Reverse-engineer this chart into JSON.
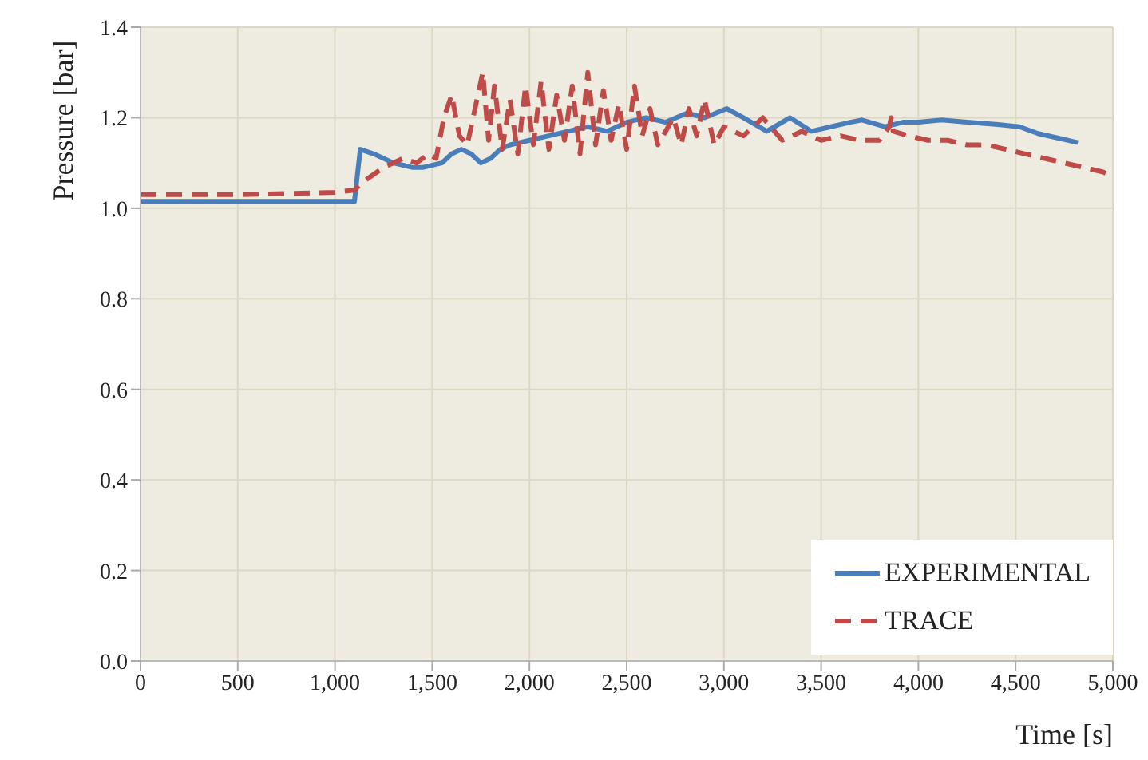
{
  "chart_data": {
    "type": "line",
    "xlabel": "Time [s]",
    "ylabel": "Pressure [bar]",
    "xlim": [
      0,
      5000
    ],
    "ylim": [
      0,
      1.4
    ],
    "xticks": [
      {
        "value": 0,
        "label": "0"
      },
      {
        "value": 500,
        "label": "500"
      },
      {
        "value": 1000,
        "label": "1,000"
      },
      {
        "value": 1500,
        "label": "1,500"
      },
      {
        "value": 2000,
        "label": "2,000"
      },
      {
        "value": 2500,
        "label": "2,500"
      },
      {
        "value": 3000,
        "label": "3,000"
      },
      {
        "value": 3500,
        "label": "3,500"
      },
      {
        "value": 4000,
        "label": "4,000"
      },
      {
        "value": 4500,
        "label": "4,500"
      },
      {
        "value": 5000,
        "label": "5,000"
      }
    ],
    "yticks": [
      {
        "value": 0,
        "label": "0.0"
      },
      {
        "value": 0.2,
        "label": "0.2"
      },
      {
        "value": 0.4,
        "label": "0.4"
      },
      {
        "value": 0.6,
        "label": "0.6"
      },
      {
        "value": 0.8,
        "label": "0.8"
      },
      {
        "value": 1.0,
        "label": "1.0"
      },
      {
        "value": 1.2,
        "label": "1.2"
      },
      {
        "value": 1.4,
        "label": "1.4"
      }
    ],
    "grid": true,
    "legend": "bottom right",
    "marker": "none",
    "series": [
      {
        "name": "EXPERIMENTAL",
        "color": "#4a7ebb",
        "line_style": "solid",
        "x": [
          0,
          500,
          1000,
          1100,
          1130,
          1200,
          1300,
          1400,
          1450,
          1550,
          1600,
          1650,
          1700,
          1750,
          1800,
          1850,
          1900,
          2000,
          2100,
          2200,
          2300,
          2400,
          2500,
          2600,
          2700,
          2810,
          2900,
          3015,
          3100,
          3220,
          3340,
          3450,
          3550,
          3650,
          3710,
          3830,
          3920,
          4000,
          4120,
          4250,
          4410,
          4520,
          4615,
          4720,
          4820
        ],
        "values": [
          1.015,
          1.015,
          1.015,
          1.015,
          1.13,
          1.12,
          1.1,
          1.09,
          1.09,
          1.1,
          1.12,
          1.13,
          1.12,
          1.1,
          1.11,
          1.13,
          1.14,
          1.15,
          1.16,
          1.17,
          1.18,
          1.17,
          1.19,
          1.2,
          1.19,
          1.21,
          1.2,
          1.22,
          1.2,
          1.17,
          1.2,
          1.17,
          1.18,
          1.19,
          1.195,
          1.18,
          1.19,
          1.19,
          1.195,
          1.19,
          1.185,
          1.18,
          1.165,
          1.155,
          1.145
        ]
      },
      {
        "name": "TRACE",
        "color": "#be4b48",
        "line_style": "dashed",
        "x": [
          0,
          500,
          1000,
          1100,
          1150,
          1250,
          1350,
          1420,
          1480,
          1520,
          1560,
          1600,
          1640,
          1680,
          1720,
          1760,
          1790,
          1820,
          1860,
          1900,
          1940,
          1980,
          2020,
          2060,
          2100,
          2140,
          2180,
          2220,
          2260,
          2300,
          2340,
          2380,
          2420,
          2460,
          2500,
          2540,
          2580,
          2620,
          2660,
          2700,
          2740,
          2780,
          2820,
          2860,
          2900,
          2950,
          3000,
          3100,
          3200,
          3300,
          3400,
          3500,
          3600,
          3700,
          3800,
          3850,
          3860,
          3870,
          3950,
          4050,
          4150,
          4250,
          4350,
          4450,
          4550,
          4650,
          4750,
          4850,
          4950,
          5000
        ],
        "values": [
          1.03,
          1.03,
          1.035,
          1.04,
          1.06,
          1.09,
          1.11,
          1.1,
          1.12,
          1.11,
          1.2,
          1.25,
          1.16,
          1.14,
          1.22,
          1.3,
          1.15,
          1.27,
          1.13,
          1.24,
          1.12,
          1.27,
          1.14,
          1.28,
          1.13,
          1.25,
          1.15,
          1.27,
          1.12,
          1.3,
          1.14,
          1.26,
          1.15,
          1.23,
          1.13,
          1.27,
          1.16,
          1.22,
          1.14,
          1.17,
          1.2,
          1.14,
          1.22,
          1.16,
          1.24,
          1.14,
          1.18,
          1.16,
          1.2,
          1.15,
          1.17,
          1.15,
          1.16,
          1.15,
          1.15,
          1.18,
          1.2,
          1.17,
          1.16,
          1.15,
          1.15,
          1.14,
          1.14,
          1.13,
          1.12,
          1.11,
          1.1,
          1.09,
          1.08,
          1.07
        ]
      }
    ]
  }
}
